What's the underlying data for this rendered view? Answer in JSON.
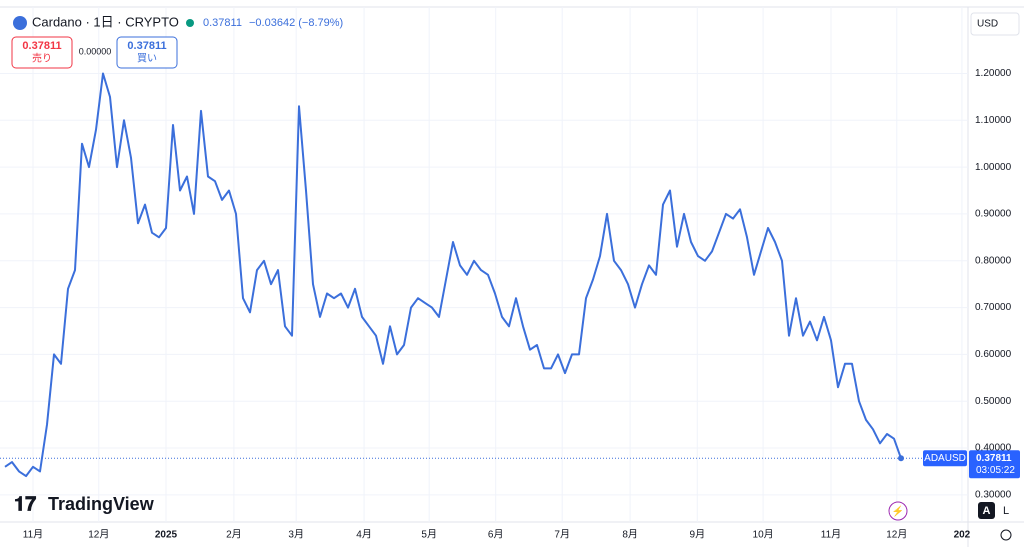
{
  "header": {
    "symbol": "Cardano · 1日 · CRYPTO",
    "price": "0.37811",
    "change": "−0.03642 (−8.79%)"
  },
  "sell": {
    "price": "0.37811",
    "label": "売り"
  },
  "spread": "0.00000",
  "buy": {
    "price": "0.37811",
    "label": "買い"
  },
  "currency": "USD",
  "price_tag": {
    "symbol": "ADAUSD",
    "price": "0.37811",
    "countdown": "03:05:22"
  },
  "logo": "TradingView",
  "buttons": [
    "A",
    "L"
  ],
  "chart_data": {
    "type": "line",
    "color": "#3b6fdb",
    "grid": true,
    "values": [
      0.36,
      0.37,
      0.35,
      0.34,
      0.36,
      0.35,
      0.45,
      0.6,
      0.58,
      0.74,
      0.78,
      1.05,
      1.0,
      1.08,
      1.2,
      1.15,
      1.0,
      1.1,
      1.02,
      0.88,
      0.92,
      0.86,
      0.85,
      0.87,
      1.09,
      0.95,
      0.98,
      0.9,
      1.12,
      0.98,
      0.97,
      0.93,
      0.95,
      0.9,
      0.72,
      0.69,
      0.78,
      0.8,
      0.75,
      0.78,
      0.66,
      0.64,
      1.13,
      0.95,
      0.75,
      0.68,
      0.73,
      0.72,
      0.73,
      0.7,
      0.74,
      0.68,
      0.66,
      0.64,
      0.58,
      0.66,
      0.6,
      0.62,
      0.7,
      0.72,
      0.71,
      0.7,
      0.68,
      0.76,
      0.84,
      0.79,
      0.77,
      0.8,
      0.78,
      0.77,
      0.73,
      0.68,
      0.66,
      0.72,
      0.66,
      0.61,
      0.62,
      0.57,
      0.57,
      0.6,
      0.56,
      0.6,
      0.6,
      0.72,
      0.76,
      0.81,
      0.9,
      0.8,
      0.78,
      0.75,
      0.7,
      0.75,
      0.79,
      0.77,
      0.92,
      0.95,
      0.83,
      0.9,
      0.84,
      0.81,
      0.8,
      0.82,
      0.86,
      0.9,
      0.89,
      0.91,
      0.85,
      0.77,
      0.82,
      0.87,
      0.84,
      0.8,
      0.64,
      0.72,
      0.64,
      0.67,
      0.63,
      0.68,
      0.63,
      0.53,
      0.58,
      0.58,
      0.5,
      0.46,
      0.44,
      0.41,
      0.43,
      0.42,
      0.37811
    ],
    "xlim": [
      -0.71,
      137.57
    ],
    "xticks": [
      {
        "value": 4,
        "label": "11月"
      },
      {
        "value": 13.4,
        "label": "12月"
      },
      {
        "value": 23,
        "label": "2025"
      },
      {
        "value": 32.7,
        "label": "2月"
      },
      {
        "value": 41.6,
        "label": "3月"
      },
      {
        "value": 51.3,
        "label": "4月"
      },
      {
        "value": 60.6,
        "label": "5月"
      },
      {
        "value": 70.1,
        "label": "6月"
      },
      {
        "value": 79.6,
        "label": "7月"
      },
      {
        "value": 89.3,
        "label": "8月"
      },
      {
        "value": 98.9,
        "label": "9月"
      },
      {
        "value": 108.3,
        "label": "10月"
      },
      {
        "value": 118,
        "label": "11月"
      },
      {
        "value": 127.4,
        "label": "12月"
      },
      {
        "value": 136.7,
        "label": "202"
      }
    ],
    "ylim": [
      0.242,
      1.342
    ],
    "yticks": [
      {
        "value": 0.3,
        "label": "0.30000"
      },
      {
        "value": 0.4,
        "label": "0.40000"
      },
      {
        "value": 0.5,
        "label": "0.50000"
      },
      {
        "value": 0.6,
        "label": "0.60000"
      },
      {
        "value": 0.7,
        "label": "0.70000"
      },
      {
        "value": 0.8,
        "label": "0.80000"
      },
      {
        "value": 0.9,
        "label": "0.90000"
      },
      {
        "value": 1.0,
        "label": "1.00000"
      },
      {
        "value": 1.1,
        "label": "1.10000"
      },
      {
        "value": 1.2,
        "label": "1.20000"
      }
    ]
  }
}
